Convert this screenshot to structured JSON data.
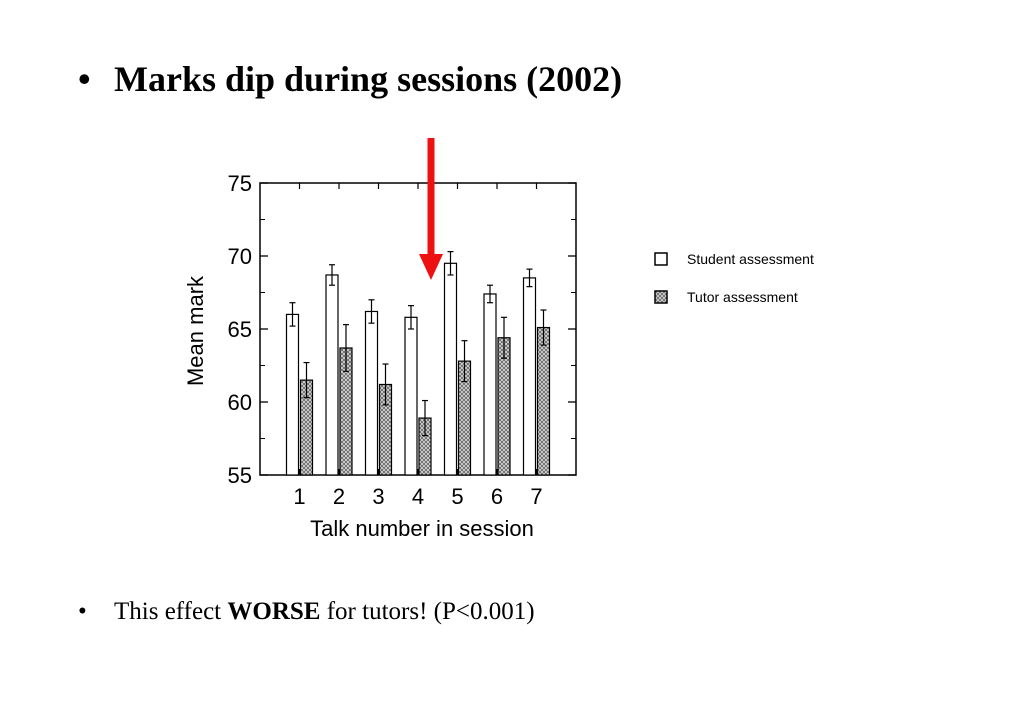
{
  "slide": {
    "bullet_char": "•",
    "title": "Marks dip during sessions (2002)",
    "note_prefix": "This effect ",
    "note_bold": "WORSE",
    "note_suffix": " for tutors! (P<0.001)"
  },
  "colors": {
    "arrow": "#ee1111",
    "bar_student": "#ffffff",
    "bar_tutor": "#bdbdbd",
    "axis": "#000000"
  },
  "chart_data": {
    "type": "bar",
    "title": "",
    "xlabel": "Talk number in session",
    "ylabel": "Mean mark",
    "categories": [
      "1",
      "2",
      "3",
      "4",
      "5",
      "6",
      "7"
    ],
    "ylim": [
      55,
      75
    ],
    "yticks": [
      "55",
      "60",
      "65",
      "70",
      "75"
    ],
    "grid": false,
    "legend_position": "right",
    "highlight_category": "4",
    "series": [
      {
        "name": "Student assessment",
        "values": [
          66.0,
          68.7,
          66.2,
          65.8,
          69.5,
          67.4,
          68.5
        ],
        "errors": [
          0.8,
          0.7,
          0.8,
          0.8,
          0.8,
          0.6,
          0.6
        ]
      },
      {
        "name": "Tutor assessment",
        "values": [
          61.5,
          63.7,
          61.2,
          58.9,
          62.8,
          64.4,
          65.1
        ],
        "errors": [
          1.2,
          1.6,
          1.4,
          1.2,
          1.4,
          1.4,
          1.2
        ]
      }
    ]
  }
}
